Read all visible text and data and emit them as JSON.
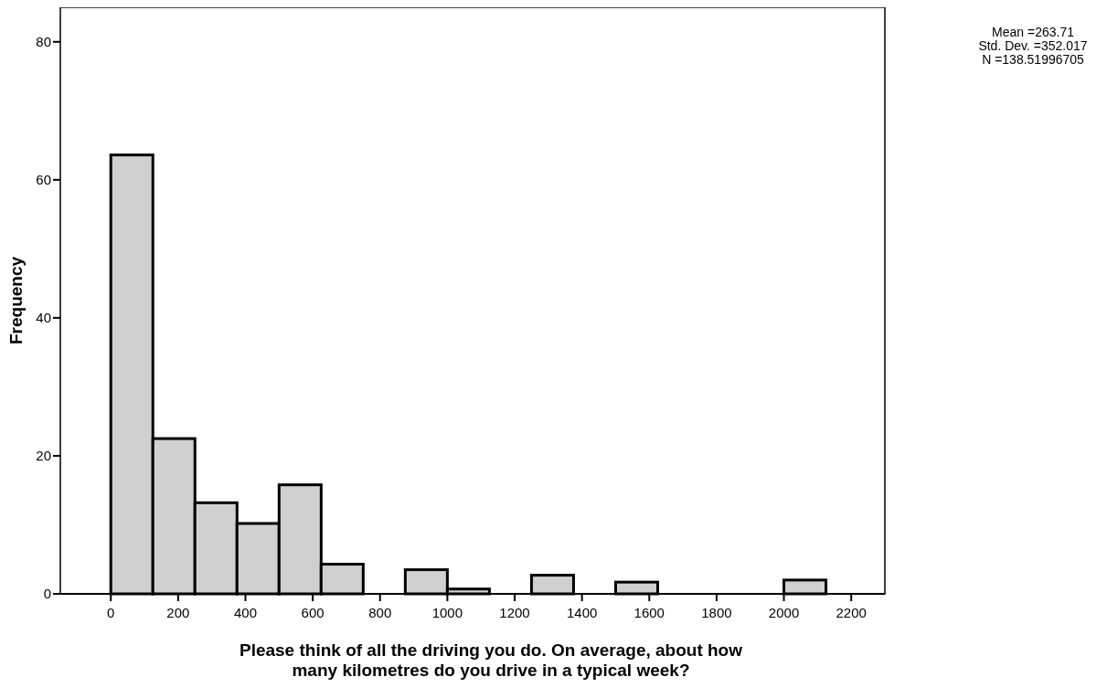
{
  "chart_data": {
    "type": "histogram",
    "xlabel": "Please think of all the driving you do. On average, about how many kilometres do you drive in a typical week?",
    "ylabel": "Frequency",
    "bins": [
      0,
      125,
      250,
      375,
      500,
      625,
      750,
      875,
      1000,
      1125,
      1250,
      1375,
      1500,
      1625,
      1750,
      1875,
      2000,
      2125
    ],
    "values": [
      63.6,
      22.5,
      13.2,
      10.2,
      15.8,
      4.3,
      0,
      3.5,
      0.7,
      0,
      2.7,
      0,
      1.7,
      0,
      0,
      0,
      2.0
    ],
    "color": "#d0d0d0",
    "xlim": [
      -150,
      2300
    ],
    "xticks": [
      0,
      200,
      400,
      600,
      800,
      1000,
      1200,
      1400,
      1600,
      1800,
      2000,
      2200
    ],
    "ylim": [
      0,
      85
    ],
    "yticks": [
      0,
      20,
      40,
      60,
      80
    ],
    "annotations": [
      "Mean =263.71",
      "Std. Dev. =352.017",
      "N =138.51996705"
    ]
  }
}
